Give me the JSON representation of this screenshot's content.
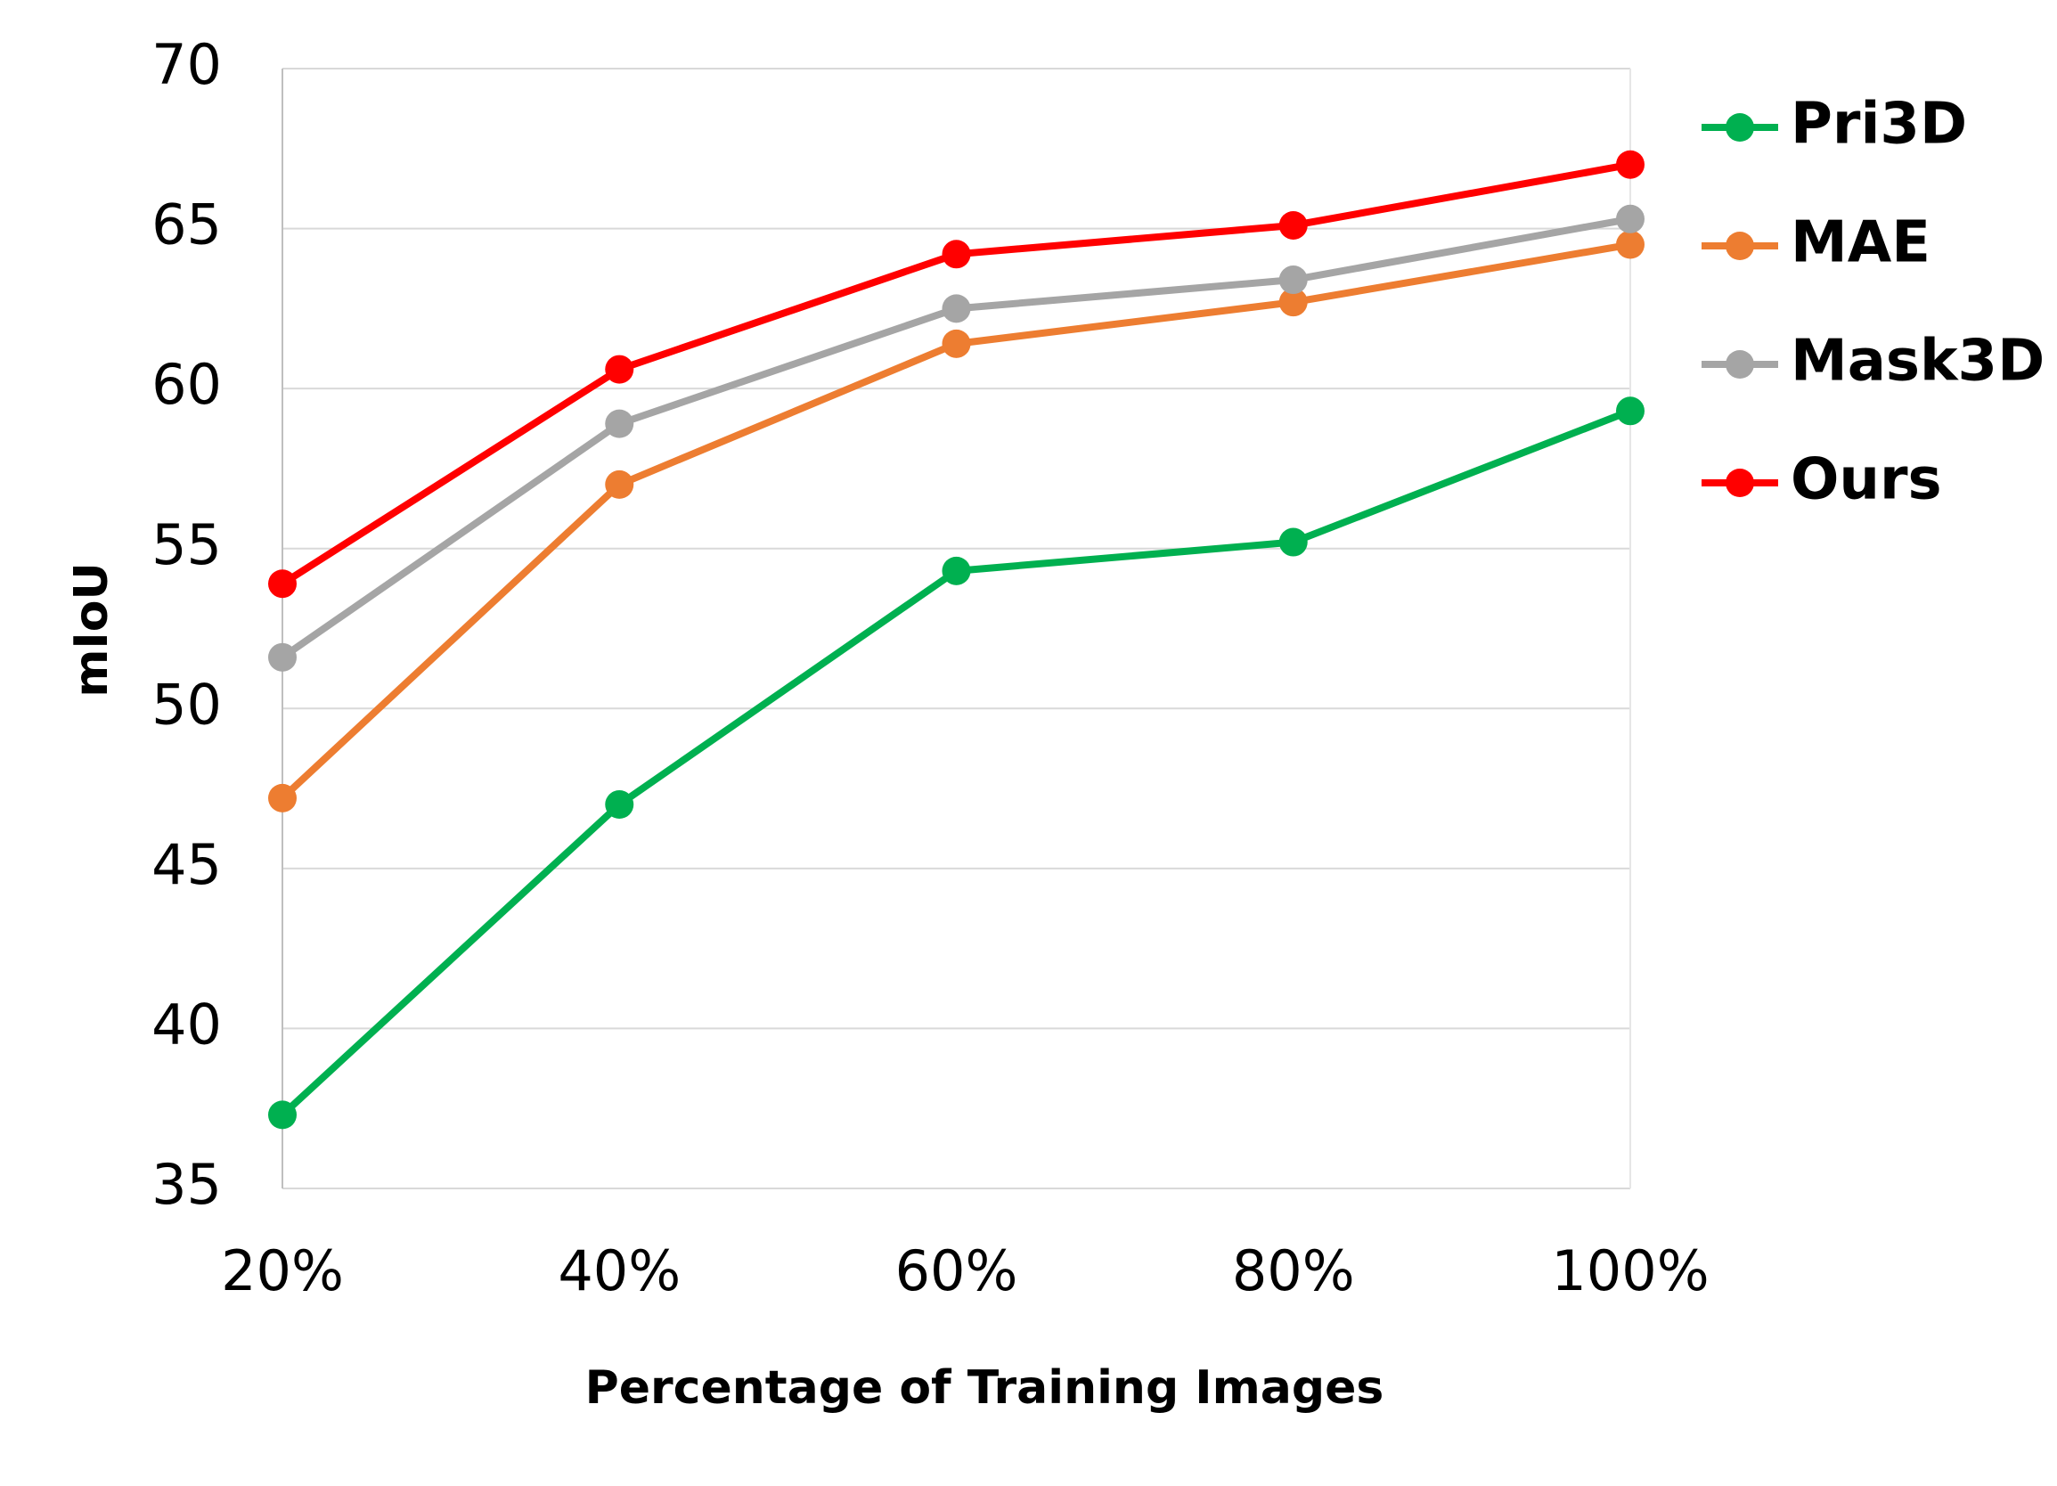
{
  "chart_data": {
    "type": "line",
    "x_label": "Percentage of Training Images",
    "y_label": "mIoU",
    "categories": [
      "20%",
      "40%",
      "60%",
      "80%",
      "100%"
    ],
    "series": [
      {
        "name": "Pri3D",
        "color": "#00b050",
        "values": [
          37.3,
          47.0,
          54.3,
          55.2,
          59.3
        ]
      },
      {
        "name": "MAE",
        "color": "#ed7d31",
        "values": [
          47.2,
          57.0,
          61.4,
          62.7,
          64.5
        ]
      },
      {
        "name": "Mask3D",
        "color": "#a5a5a5",
        "values": [
          51.6,
          58.9,
          62.5,
          63.4,
          65.3
        ]
      },
      {
        "name": "Ours",
        "color": "#ff0000",
        "values": [
          53.9,
          60.6,
          64.2,
          65.1,
          67.0
        ]
      }
    ],
    "ylim": [
      35,
      70
    ],
    "yticks": [
      35,
      40,
      45,
      50,
      55,
      60,
      65,
      70
    ],
    "grid": true,
    "legend": "right"
  }
}
